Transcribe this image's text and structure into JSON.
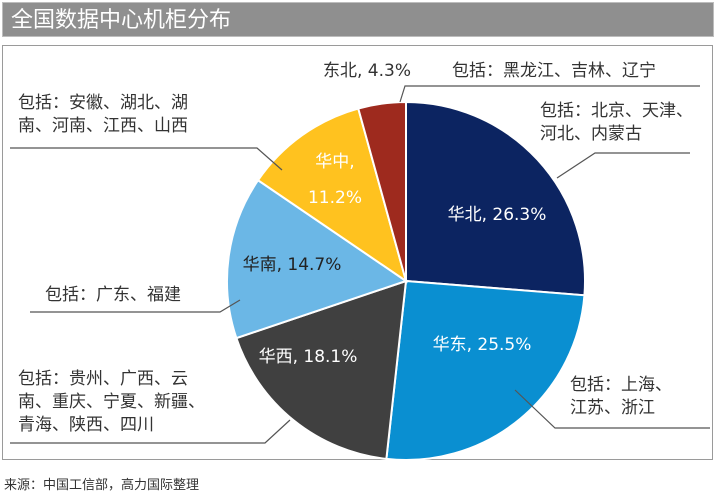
{
  "title": "全国数据中心机柜分布",
  "source": "来源：中国工信部，高力国际整理",
  "chart_data": {
    "type": "pie",
    "title": "全国数据中心机柜分布",
    "slices": [
      {
        "name": "华北",
        "value": 26.3,
        "label": "华北, 26.3%",
        "color": "#0c2461",
        "text_color": "#ffffff",
        "note": [
          "包括：北京、天津、",
          "河北、内蒙古"
        ]
      },
      {
        "name": "华东",
        "value": 25.5,
        "label": "华东, 25.5%",
        "color": "#0a8fd1",
        "text_color": "#ffffff",
        "note": [
          "包括：上海、",
          "江苏、浙江"
        ]
      },
      {
        "name": "华西",
        "value": 18.1,
        "label": "华西, 18.1%",
        "color": "#404040",
        "text_color": "#ffffff",
        "note": [
          "包括：贵州、广西、云",
          "南、重庆、宁夏、新疆、",
          "青海、陕西、四川"
        ]
      },
      {
        "name": "华南",
        "value": 14.7,
        "label": "华南, 14.7%",
        "color": "#6bb7e6",
        "text_color": "#222222",
        "note": [
          "包括：广东、福建"
        ]
      },
      {
        "name": "华中",
        "value": 11.2,
        "label": "华中, 11.2%",
        "color": "#ffc21f",
        "text_color": "#ffffff",
        "note": [
          "包括：安徽、湖北、湖",
          "南、河南、江西、山西"
        ]
      },
      {
        "name": "东北",
        "value": 4.3,
        "label": "东北, 4.3%",
        "color": "#9e2a1e",
        "text_color": "#333333",
        "note": [
          "包括：黑龙江、吉林、辽宁"
        ]
      }
    ]
  }
}
